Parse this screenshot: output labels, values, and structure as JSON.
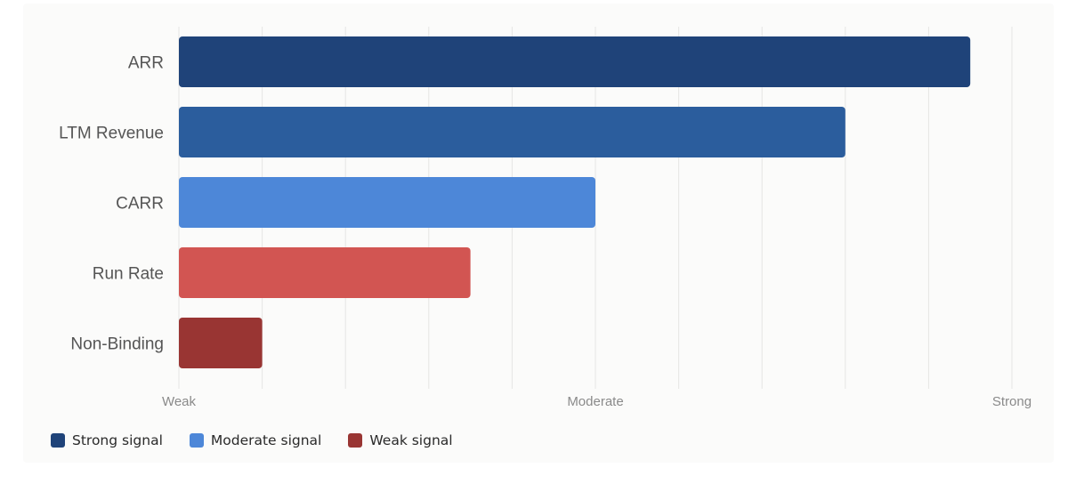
{
  "chart_data": {
    "type": "bar",
    "orientation": "horizontal",
    "categories": [
      "ARR",
      "LTM Revenue",
      "CARR",
      "Run Rate",
      "Non-Binding"
    ],
    "values": [
      9.5,
      8.0,
      5.0,
      3.5,
      1.0
    ],
    "bar_colors": [
      "#1f4379",
      "#2b5d9d",
      "#4d87d8",
      "#d25552",
      "#993533"
    ],
    "xlim": [
      0,
      10
    ],
    "x_tick_labels": [
      {
        "value": 0,
        "label": "Weak"
      },
      {
        "value": 5,
        "label": "Moderate"
      },
      {
        "value": 10,
        "label": "Strong"
      }
    ],
    "gridlines_x": [
      0,
      1,
      2,
      3,
      4,
      5,
      6,
      7,
      8,
      9,
      10
    ],
    "grid": true,
    "legend_position": "bottom-left",
    "legend": [
      {
        "label": "Strong signal",
        "color": "#1f4379"
      },
      {
        "label": "Moderate signal",
        "color": "#4d87d8"
      },
      {
        "label": "Weak signal",
        "color": "#993533"
      }
    ]
  }
}
